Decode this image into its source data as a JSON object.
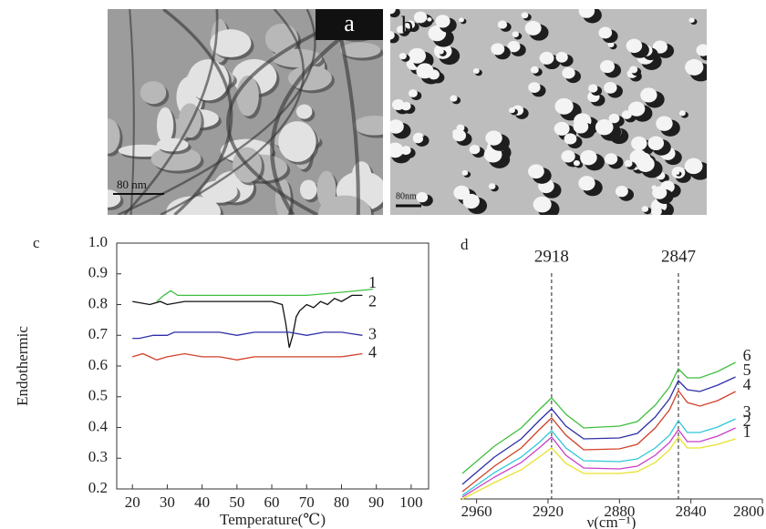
{
  "panels": [
    {
      "label": "a",
      "scale_bar": "80 nm"
    },
    {
      "label": "b",
      "scale_bar": "80nm"
    }
  ],
  "chart_data": [
    {
      "type": "line",
      "panel_label": "c",
      "y_label": "Endothermic",
      "x_label": "Temperature(℃)",
      "xlim": [
        15.5,
        105
      ],
      "ylim": [
        0.2,
        1.0
      ],
      "frame": true,
      "xticks": [
        20,
        30,
        40,
        50,
        60,
        70,
        80,
        90,
        100
      ],
      "yticks": [
        0.2,
        0.3,
        0.4,
        0.5,
        0.6,
        0.7,
        0.8,
        0.9,
        {
          "value": 1,
          "label": "1.0"
        }
      ],
      "series": [
        {
          "name": "1",
          "color": "#3fbf3f",
          "x": [
            27,
            29,
            31,
            33,
            40,
            50,
            60,
            70,
            80,
            89
          ],
          "values": [
            0.81,
            0.83,
            0.845,
            0.83,
            0.83,
            0.83,
            0.83,
            0.83,
            0.84,
            0.85
          ]
        },
        {
          "name": "2",
          "color": "#111111",
          "x": [
            20,
            25,
            28,
            30,
            35,
            40,
            45,
            50,
            55,
            60,
            63,
            64,
            65,
            66,
            67,
            68,
            70,
            72,
            74,
            76,
            78,
            80,
            83,
            86
          ],
          "values": [
            0.81,
            0.8,
            0.81,
            0.8,
            0.81,
            0.81,
            0.81,
            0.81,
            0.81,
            0.81,
            0.8,
            0.74,
            0.66,
            0.7,
            0.76,
            0.78,
            0.8,
            0.79,
            0.81,
            0.8,
            0.82,
            0.81,
            0.83,
            0.83
          ]
        },
        {
          "name": "3",
          "color": "#2f2fa8",
          "x": [
            20,
            22,
            26,
            30,
            32,
            35,
            40,
            45,
            50,
            55,
            60,
            65,
            70,
            75,
            80,
            86
          ],
          "values": [
            0.69,
            0.69,
            0.7,
            0.7,
            0.71,
            0.71,
            0.71,
            0.71,
            0.7,
            0.71,
            0.71,
            0.71,
            0.7,
            0.71,
            0.71,
            0.7
          ]
        },
        {
          "name": "4",
          "color": "#d2402a",
          "x": [
            20,
            23,
            25,
            27,
            30,
            35,
            40,
            45,
            50,
            55,
            60,
            65,
            70,
            75,
            80,
            86
          ],
          "values": [
            0.63,
            0.64,
            0.63,
            0.62,
            0.63,
            0.64,
            0.63,
            0.63,
            0.62,
            0.63,
            0.63,
            0.63,
            0.63,
            0.63,
            0.63,
            0.64
          ]
        }
      ]
    },
    {
      "type": "line",
      "panel_label": "d",
      "x_label": "ν(cm⁻¹)",
      "xlim": [
        2969,
        2800
      ],
      "ylim": [
        0,
        17
      ],
      "frame": false,
      "xticks": [
        2960,
        2920,
        2880,
        2840,
        2800
      ],
      "vlines": [
        2918,
        2847
      ],
      "series": [
        {
          "name": "6",
          "color": "#3fbf3f",
          "x": [
            2968,
            2950,
            2935,
            2925,
            2918,
            2910,
            2900,
            2880,
            2870,
            2860,
            2852,
            2847,
            2842,
            2835,
            2825,
            2815
          ],
          "values": [
            2.8,
            5.8,
            7.8,
            9.8,
            11.1,
            9.3,
            7.8,
            8.0,
            8.5,
            10.3,
            12.3,
            14.3,
            13.3,
            13.3,
            14.0,
            15.0
          ]
        },
        {
          "name": "5",
          "color": "#2f2fa8",
          "x": [
            2968,
            2950,
            2935,
            2925,
            2918,
            2910,
            2900,
            2880,
            2870,
            2860,
            2852,
            2847,
            2842,
            2835,
            2825,
            2815
          ],
          "values": [
            1.6,
            4.6,
            6.6,
            8.6,
            9.9,
            8.0,
            6.6,
            6.7,
            7.2,
            9.0,
            11.0,
            13.0,
            12.0,
            11.8,
            12.5,
            13.4
          ]
        },
        {
          "name": "4",
          "color": "#d2402a",
          "x": [
            2968,
            2950,
            2935,
            2925,
            2918,
            2910,
            2900,
            2880,
            2870,
            2860,
            2852,
            2847,
            2842,
            2835,
            2825,
            2815
          ],
          "values": [
            0.8,
            3.6,
            5.6,
            7.6,
            8.9,
            7.0,
            5.4,
            5.5,
            6.0,
            7.8,
            9.8,
            11.9,
            10.6,
            10.2,
            10.8,
            11.8
          ]
        },
        {
          "name": "3",
          "color": "#2fc8d8",
          "x": [
            2968,
            2950,
            2935,
            2925,
            2918,
            2910,
            2900,
            2880,
            2870,
            2860,
            2852,
            2847,
            2842,
            2835,
            2825,
            2815
          ],
          "values": [
            0.4,
            2.9,
            4.6,
            6.2,
            7.5,
            5.6,
            4.2,
            4.1,
            4.4,
            5.6,
            7.0,
            8.6,
            7.3,
            7.3,
            7.9,
            8.8
          ]
        },
        {
          "name": "2",
          "color": "#c83fc8",
          "x": [
            2968,
            2950,
            2935,
            2925,
            2918,
            2910,
            2900,
            2880,
            2870,
            2860,
            2852,
            2847,
            2842,
            2835,
            2825,
            2815
          ],
          "values": [
            0.2,
            2.4,
            4.0,
            5.6,
            6.8,
            4.8,
            3.4,
            3.3,
            3.6,
            4.8,
            6.2,
            7.6,
            6.3,
            6.3,
            6.9,
            7.8
          ]
        },
        {
          "name": "1",
          "color": "#e6e22a",
          "x": [
            2968,
            2950,
            2935,
            2925,
            2918,
            2910,
            2900,
            2880,
            2870,
            2860,
            2852,
            2847,
            2842,
            2835,
            2825,
            2815
          ],
          "values": [
            0.0,
            1.8,
            3.2,
            4.6,
            5.6,
            3.9,
            2.8,
            2.8,
            3.0,
            4.0,
            5.4,
            6.8,
            5.6,
            5.6,
            6.0,
            6.6
          ]
        }
      ]
    }
  ]
}
